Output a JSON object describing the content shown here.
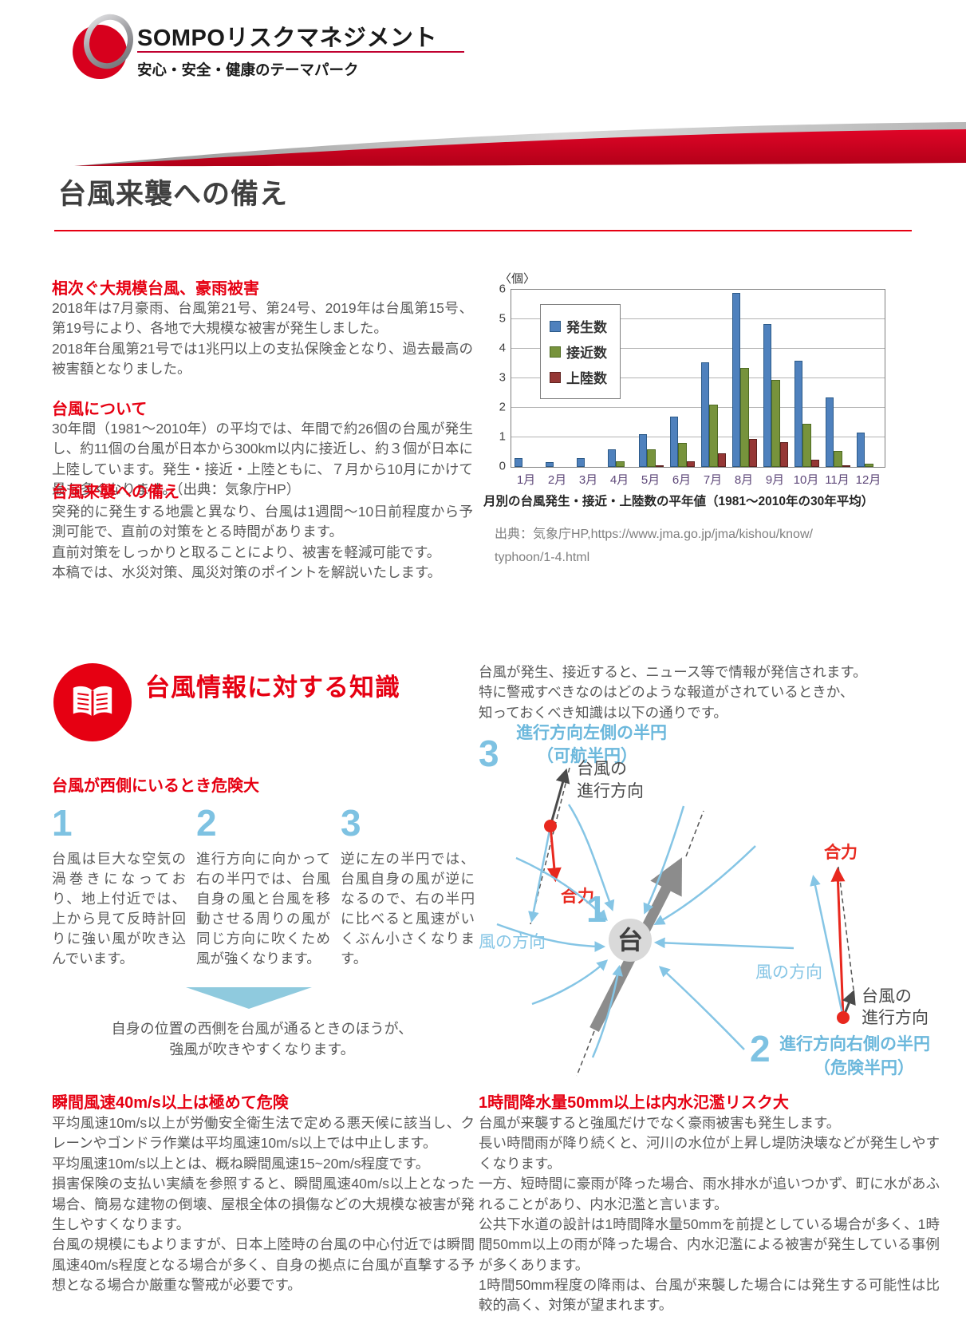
{
  "header": {
    "brand": "SOMPOリスクマネジメント",
    "tagline": "安心・安全・健康のテーマパーク"
  },
  "page_title": "台風来襲への備え",
  "sections": {
    "s1": {
      "heading": "相次ぐ大規模台風、豪雨被害",
      "body": "2018年は7月豪雨、台風第21号、第24号、2019年は台風第15号、第19号により、各地で大規模な被害が発生しました。\n2018年台風第21号では1兆円以上の支払保険金となり、過去最高の被害額となりました。"
    },
    "s2": {
      "heading": "台風について",
      "body": "30年間（1981～2010年）の平均では、年間で約26個の台風が発生し、約11個の台風が日本から300km以内に接近し、約３個が日本に上陸しています。発生・接近・上陸ともに、７月から10月にかけて最も多くなります。（出典：気象庁HP）"
    },
    "s3": {
      "heading": "台風来襲への備え",
      "body": "突発的に発生する地震と異なり、台風は1週間～10日前程度から予測可能で、直前の対策をとる時間があります。\n直前対策をしっかりと取ることにより、被害を軽減可能です。\n本稿では、水災対策、風災対策のポイントを解説いたします。"
    }
  },
  "chart_data": {
    "type": "bar",
    "title": "月別の台風発生・接近・上陸数の平年値（1981～2010年の30年平均）",
    "unit_label": "〈個〉",
    "source": "出典：気象庁HP,https://www.jma.go.jp/jma/kishou/know/\ntyphoon/1-4.html",
    "categories": [
      "1月",
      "2月",
      "3月",
      "4月",
      "5月",
      "6月",
      "7月",
      "8月",
      "9月",
      "10月",
      "11月",
      "12月"
    ],
    "series": [
      {
        "name": "発生数",
        "color": "#4F81BD",
        "border": "#2c5a88",
        "values": [
          0.3,
          0.15,
          0.3,
          0.6,
          1.1,
          1.7,
          3.55,
          5.9,
          4.85,
          3.6,
          2.35,
          1.15
        ]
      },
      {
        "name": "接近数",
        "color": "#77933C",
        "border": "#4e6b22",
        "values": [
          0,
          0,
          0,
          0.2,
          0.6,
          0.8,
          2.1,
          3.35,
          2.95,
          1.45,
          0.55,
          0.1
        ]
      },
      {
        "name": "上陸数",
        "color": "#953735",
        "border": "#5e221f",
        "values": [
          0,
          0,
          0,
          0,
          0.05,
          0.2,
          0.45,
          0.95,
          0.85,
          0.25,
          0.05,
          0
        ]
      }
    ],
    "ylim": [
      0,
      6
    ],
    "yticks": [
      0,
      1,
      2,
      3,
      4,
      5,
      6
    ],
    "grid": true,
    "legend_position": "top-left inside plot"
  },
  "knowledge": {
    "heading": "台風情報に対する知識",
    "intro": "台風が発生、接近すると、ニュース等で情報が発信されます。\n特に警戒すべきなのはどのような報道がされているときか、\n知っておくべき知識は以下の通りです。"
  },
  "west": {
    "heading": "台風が西側にいるとき危険大",
    "steps": [
      {
        "num": "1",
        "text": "台風は巨大な空気の渦巻きになっており、地上付近では、上から見て反時計回りに強い風が吹き込んでいます。"
      },
      {
        "num": "2",
        "text": "進行方向に向かって右の半円では、台風自身の風と台風を移動させる周りの風が同じ方向に吹くため風が強くなります。"
      },
      {
        "num": "3",
        "text": "逆に左の半円では、台風自身の風が逆になるので、右の半円に比べると風速がいくぶん小さくなります。"
      }
    ],
    "conclusion": "自身の位置の西側を台風が通るときのほうが、\n強風が吹きやすくなります。"
  },
  "diagram": {
    "one": "1",
    "two": "2",
    "three": "3",
    "left_half_title": "進行方向左側の半円",
    "left_half_sub": "（可航半円）",
    "right_half_title": "進行方向右側の半円",
    "right_half_sub": "（危険半円）",
    "typhoon_mark": "台",
    "direction_l1": "台風の",
    "direction_l2": "進行方向",
    "resultant": "合力",
    "wind_direction": "風の方向"
  },
  "wind_section": {
    "heading": "瞬間風速40m/s以上は極めて危険",
    "body": "平均風速10m/s以上が労働安全衛生法で定める悪天候に該当し、クレーンやゴンドラ作業は平均風速10m/s以上では中止します。\n平均風速10m/s以上とは、概ね瞬間風速15~20m/s程度です。\n損害保険の支払い実績を参照すると、瞬間風速40m/s以上となった場合、簡易な建物の倒壊、屋根全体の損傷などの大規模な被害が発生しやすくなります。\n台風の規模にもよりますが、日本上陸時の台風の中心付近では瞬間風速40m/s程度となる場合が多く、自身の拠点に台風が直撃する予想となる場合か厳重な警戒が必要です。"
  },
  "rain_section": {
    "heading": "1時間降水量50mm以上は内水氾濫リスク大",
    "body": "台風が来襲すると強風だけでなく豪雨被害も発生します。\n長い時間雨が降り続くと、河川の水位が上昇し堤防決壊などが発生しやすくなります。\n一方、短時間に豪雨が降った場合、雨水排水が追いつかず、町に水があふれることがあり、内水氾濫と言います。\n公共下水道の設計は1時間降水量50mmを前提としている場合が多く、1時間50mm以上の雨が降った場合、内水氾濫による被害が発生している事例が多くあります。\n1時間50mm程度の降雨は、台風が来襲した場合には発生する可能性は比較的高く、対策が望まれます。"
  }
}
